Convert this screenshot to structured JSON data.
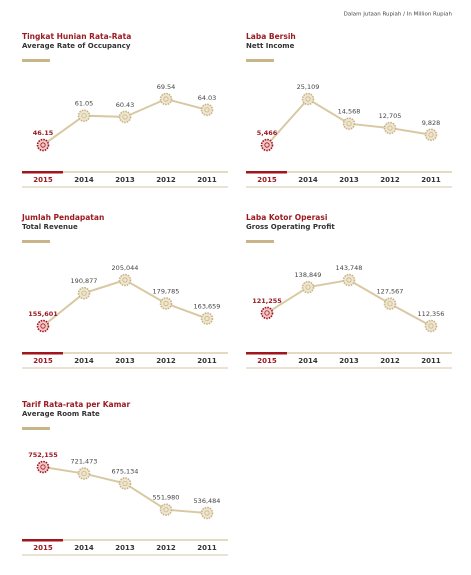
{
  "note": "Dalam Jutaan Rupiah / In Million Rupiah",
  "chart_data": [
    {
      "type": "line",
      "title": "Tingkat Hunian Rata-Rata",
      "subtitle": "Average Rate of Occupancy",
      "color": "#d9c9a3",
      "categories": [
        "2015",
        "2014",
        "2013",
        "2012",
        "2011"
      ],
      "values": [
        46.15,
        61.05,
        60.43,
        69.54,
        64.03
      ]
    },
    {
      "type": "line",
      "title": "Laba Bersih",
      "subtitle": "Nett Income",
      "color": "#d9c9a3",
      "categories": [
        "2015",
        "2014",
        "2013",
        "2012",
        "2011"
      ],
      "values": [
        5466,
        25109,
        14568,
        12705,
        9828
      ],
      "value_labels": [
        "5,466",
        "25,109",
        "14,568",
        "12,705",
        "9,828"
      ]
    },
    {
      "type": "line",
      "title": "Jumlah Pendapatan",
      "subtitle": "Total Revenue",
      "color": "#d9c9a3",
      "categories": [
        "2015",
        "2014",
        "2013",
        "2012",
        "2011"
      ],
      "values": [
        155601,
        190877,
        205044,
        179785,
        163659
      ],
      "value_labels": [
        "155,601",
        "190,877",
        "205,044",
        "179,785",
        "163,659"
      ]
    },
    {
      "type": "line",
      "title": "Laba Kotor Operasi",
      "subtitle": "Gross Operating Profit",
      "color": "#d9c9a3",
      "categories": [
        "2015",
        "2014",
        "2013",
        "2012",
        "2011"
      ],
      "values": [
        121255,
        138849,
        143748,
        127567,
        112356
      ],
      "value_labels": [
        "121,255",
        "138,849",
        "143,748",
        "127,567",
        "112,356"
      ]
    },
    {
      "type": "line",
      "title": "Tarif Rata-rata per Kamar",
      "subtitle": "Average Room Rate",
      "color": "#d9c9a3",
      "categories": [
        "2015",
        "2014",
        "2013",
        "2012",
        "2011"
      ],
      "values": [
        752155,
        721473,
        675134,
        551980,
        536484
      ],
      "value_labels": [
        "752,155",
        "721,473",
        "675,134",
        "551,980",
        "536,484"
      ]
    }
  ]
}
